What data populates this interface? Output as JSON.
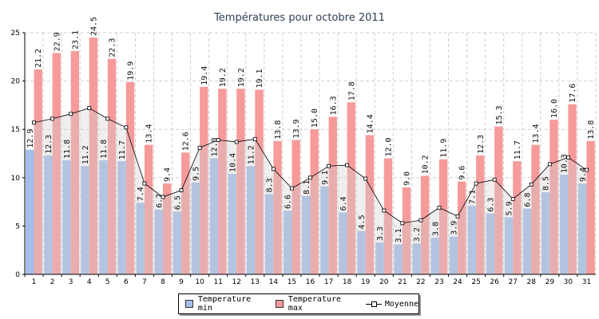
{
  "chart_data": {
    "type": "bar",
    "title": "Températures pour octobre 2011",
    "categories": [
      "1",
      "2",
      "3",
      "4",
      "5",
      "6",
      "7",
      "8",
      "9",
      "10",
      "11",
      "12",
      "13",
      "14",
      "15",
      "16",
      "17",
      "18",
      "19",
      "20",
      "21",
      "22",
      "23",
      "24",
      "25",
      "26",
      "27",
      "28",
      "29",
      "30",
      "31"
    ],
    "series": [
      {
        "name": "Temperature min",
        "type": "bar",
        "color": "#a4bdea",
        "values": [
          12.9,
          12.3,
          11.8,
          11.2,
          11.8,
          11.7,
          7.4,
          6.7,
          6.5,
          9.5,
          12.0,
          10.4,
          11.2,
          8.3,
          6.6,
          8.1,
          9.1,
          6.4,
          4.5,
          3.3,
          3.1,
          3.2,
          3.8,
          3.9,
          7.1,
          6.3,
          5.9,
          6.8,
          8.5,
          10.3,
          9.4
        ]
      },
      {
        "name": "Temperature max",
        "type": "bar",
        "color": "#f79a9a",
        "values": [
          21.2,
          22.9,
          23.1,
          24.5,
          22.3,
          19.9,
          13.4,
          9.4,
          12.6,
          19.4,
          19.2,
          19.2,
          19.1,
          13.8,
          13.9,
          15.0,
          16.3,
          17.8,
          14.4,
          12.0,
          9.0,
          10.2,
          11.9,
          9.6,
          12.3,
          15.3,
          11.7,
          13.4,
          16.0,
          17.6,
          13.8
        ]
      },
      {
        "name": "Moyenne",
        "type": "line",
        "color": "#000000",
        "values": [
          15.7,
          16.1,
          16.6,
          17.2,
          16.1,
          15.2,
          9.4,
          8.0,
          8.7,
          13.1,
          13.9,
          13.7,
          14.0,
          10.9,
          8.9,
          10.0,
          11.2,
          11.3,
          9.9,
          6.6,
          5.3,
          5.6,
          6.9,
          6.0,
          9.4,
          9.8,
          7.8,
          9.3,
          11.4,
          12.1,
          10.8
        ]
      }
    ],
    "ylim": [
      0,
      25
    ],
    "yticks": [
      0,
      5,
      10,
      15,
      20,
      25
    ],
    "grid": true,
    "legend_position": "bottom"
  },
  "legend": {
    "min_label": "Temperature min",
    "max_label": "Temperature max",
    "avg_label": "Moyenne"
  }
}
